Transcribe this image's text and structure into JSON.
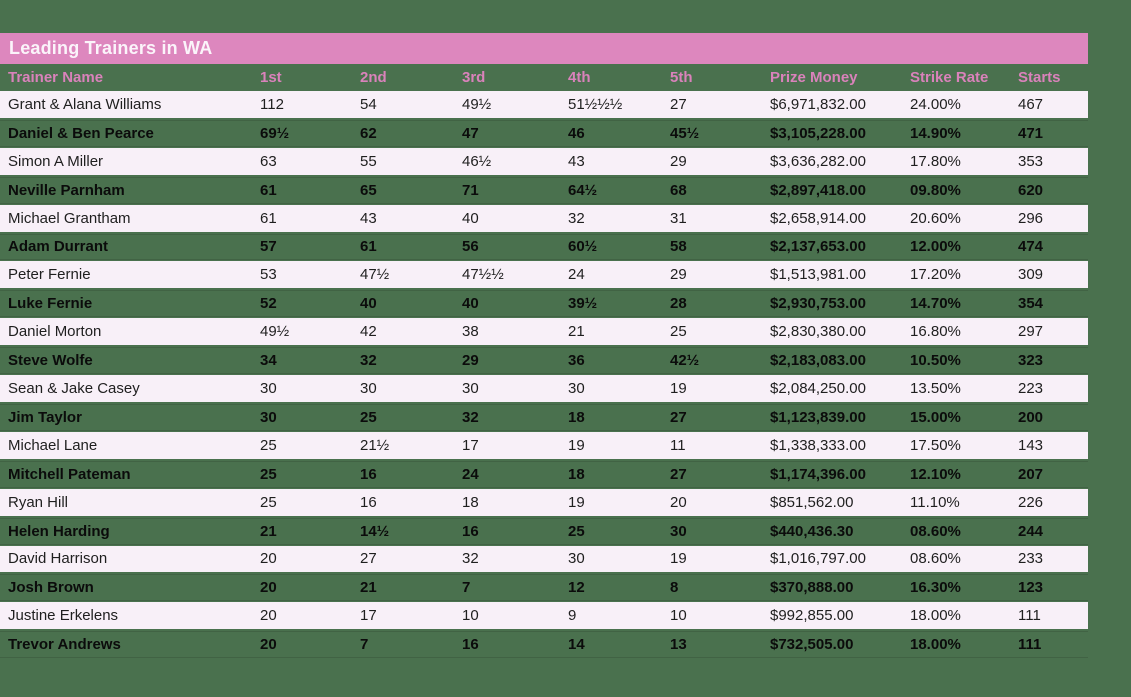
{
  "title": "Leading Trainers in WA",
  "colors": {
    "background_green": "#4A714E",
    "title_bar_pink": "#DD87BE",
    "header_text_pink": "#DA82BB",
    "row_white": "#F8F0F8",
    "row_text_dark": "#1F1F1F",
    "title_text": "#FBF4FA"
  },
  "chart_data": {
    "type": "table",
    "title": "Leading Trainers in WA",
    "columns": [
      "Trainer Name",
      "1st",
      "2nd",
      "3rd",
      "4th",
      "5th",
      "Prize Money",
      "Strike Rate",
      "Starts"
    ],
    "column_keys": [
      "trainer-name",
      "1st",
      "2nd",
      "3rd",
      "4th",
      "5th",
      "prize-money",
      "strike-rate",
      "starts"
    ],
    "rows": [
      [
        "Grant & Alana Williams",
        "112",
        "54",
        "49½",
        "51½½½",
        "27",
        "$6,971,832.00",
        "24.00%",
        "467"
      ],
      [
        "Daniel & Ben Pearce",
        "69½",
        "62",
        "47",
        "46",
        "45½",
        "$3,105,228.00",
        "14.90%",
        "471"
      ],
      [
        "Simon A Miller",
        "63",
        "55",
        "46½",
        "43",
        "29",
        "$3,636,282.00",
        "17.80%",
        "353"
      ],
      [
        "Neville Parnham",
        "61",
        "65",
        "71",
        "64½",
        "68",
        "$2,897,418.00",
        "09.80%",
        "620"
      ],
      [
        "Michael Grantham",
        "61",
        "43",
        "40",
        "32",
        "31",
        "$2,658,914.00",
        "20.60%",
        "296"
      ],
      [
        "Adam Durrant",
        "57",
        "61",
        "56",
        "60½",
        "58",
        "$2,137,653.00",
        "12.00%",
        "474"
      ],
      [
        "Peter Fernie",
        "53",
        "47½",
        "47½½",
        "24",
        "29",
        "$1,513,981.00",
        "17.20%",
        "309"
      ],
      [
        "Luke Fernie",
        "52",
        "40",
        "40",
        "39½",
        "28",
        "$2,930,753.00",
        "14.70%",
        "354"
      ],
      [
        "Daniel Morton",
        "49½",
        "42",
        "38",
        "21",
        "25",
        "$2,830,380.00",
        "16.80%",
        "297"
      ],
      [
        "Steve Wolfe",
        "34",
        "32",
        "29",
        "36",
        "42½",
        "$2,183,083.00",
        "10.50%",
        "323"
      ],
      [
        "Sean & Jake Casey",
        "30",
        "30",
        "30",
        "30",
        "19",
        "$2,084,250.00",
        "13.50%",
        "223"
      ],
      [
        "Jim Taylor",
        "30",
        "25",
        "32",
        "18",
        "27",
        "$1,123,839.00",
        "15.00%",
        "200"
      ],
      [
        "Michael Lane",
        "25",
        "21½",
        "17",
        "19",
        "11",
        "$1,338,333.00",
        "17.50%",
        "143"
      ],
      [
        "Mitchell Pateman",
        "25",
        "16",
        "24",
        "18",
        "27",
        "$1,174,396.00",
        "12.10%",
        "207"
      ],
      [
        "Ryan Hill",
        "25",
        "16",
        "18",
        "19",
        "20",
        "$851,562.00",
        "11.10%",
        "226"
      ],
      [
        "Helen Harding",
        "21",
        "14½",
        "16",
        "25",
        "30",
        "$440,436.30",
        "08.60%",
        "244"
      ],
      [
        "David Harrison",
        "20",
        "27",
        "32",
        "30",
        "19",
        "$1,016,797.00",
        "08.60%",
        "233"
      ],
      [
        "Josh Brown",
        "20",
        "21",
        "7",
        "12",
        "8",
        "$370,888.00",
        "16.30%",
        "123"
      ],
      [
        "Justine Erkelens",
        "20",
        "17",
        "10",
        "9",
        "10",
        "$992,855.00",
        "18.00%",
        "111"
      ],
      [
        "Trevor Andrews",
        "20",
        "7",
        "16",
        "14",
        "13",
        "$732,505.00",
        "18.00%",
        "111"
      ]
    ]
  }
}
